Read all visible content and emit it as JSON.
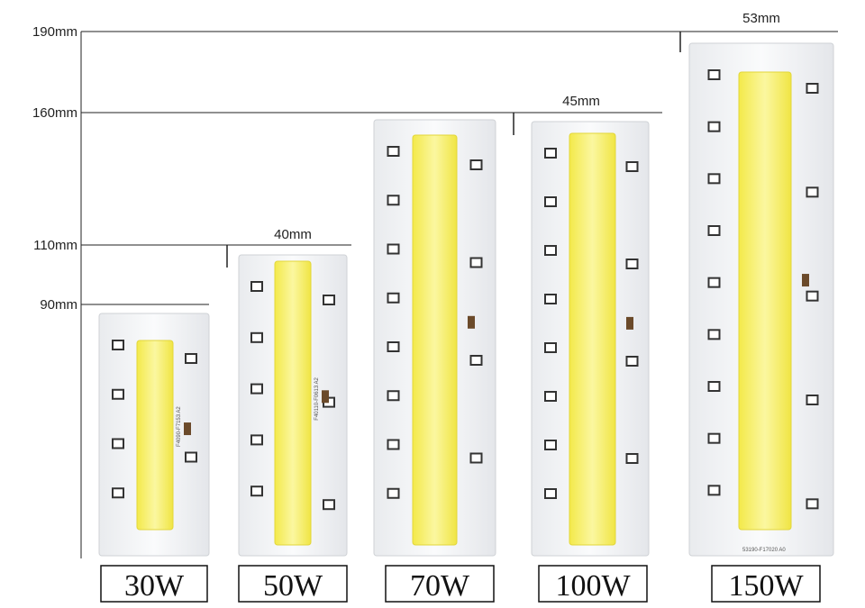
{
  "dimensions": {
    "heights": [
      "190mm",
      "160mm",
      "110mm",
      "90mm"
    ],
    "widths": [
      "40mm",
      "45mm",
      "53mm"
    ]
  },
  "products": [
    {
      "power": "30W",
      "code": "F4090-F7153 A2"
    },
    {
      "power": "50W",
      "code": "F40110-F0613 A2"
    },
    {
      "power": "70W"
    },
    {
      "power": "100W"
    },
    {
      "power": "150W",
      "code": "53190-F17020 A0"
    }
  ]
}
